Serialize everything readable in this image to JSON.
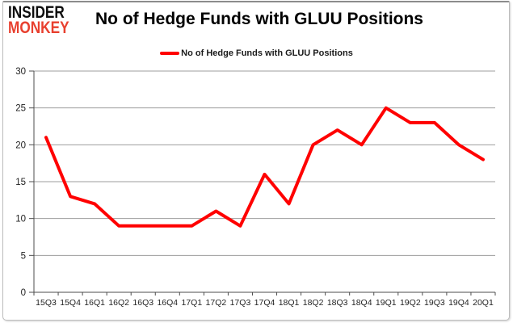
{
  "logo": {
    "line1": "INSIDER",
    "line2": "MONKEY",
    "line1_color": "#0d0d0d",
    "line2_color": "#e8402f"
  },
  "header": {
    "title": "No of Hedge Funds with GLUU Positions"
  },
  "legend": {
    "label": "No of Hedge Funds with GLUU Positions",
    "swatch": "red-line-swatch",
    "position": "top-center",
    "color": "#ff0000"
  },
  "chart_data": {
    "type": "line",
    "title": "No of Hedge Funds with GLUU Positions",
    "categories": [
      "15Q3",
      "15Q4",
      "16Q1",
      "16Q2",
      "16Q3",
      "16Q4",
      "17Q1",
      "17Q2",
      "17Q3",
      "17Q4",
      "18Q1",
      "18Q2",
      "18Q3",
      "18Q4",
      "19Q1",
      "19Q2",
      "19Q3",
      "19Q4",
      "20Q1"
    ],
    "series": [
      {
        "name": "No of Hedge Funds with GLUU Positions",
        "values": [
          21,
          13,
          12,
          9,
          9,
          9,
          9,
          11,
          9,
          16,
          12,
          20,
          22,
          20,
          25,
          23,
          23,
          20,
          18
        ],
        "color": "#ff0000"
      }
    ],
    "xlabel": "",
    "ylabel": "",
    "ylim": [
      0,
      30
    ],
    "ytick_step": 5,
    "grid": true,
    "legend_position": "top-center"
  },
  "colors": {
    "frame_red": "#fb0909",
    "gridline": "#9d9d9d",
    "axis": "#4d4d4d",
    "tick_label": "#1f1f1f",
    "background": "#ffffff"
  }
}
